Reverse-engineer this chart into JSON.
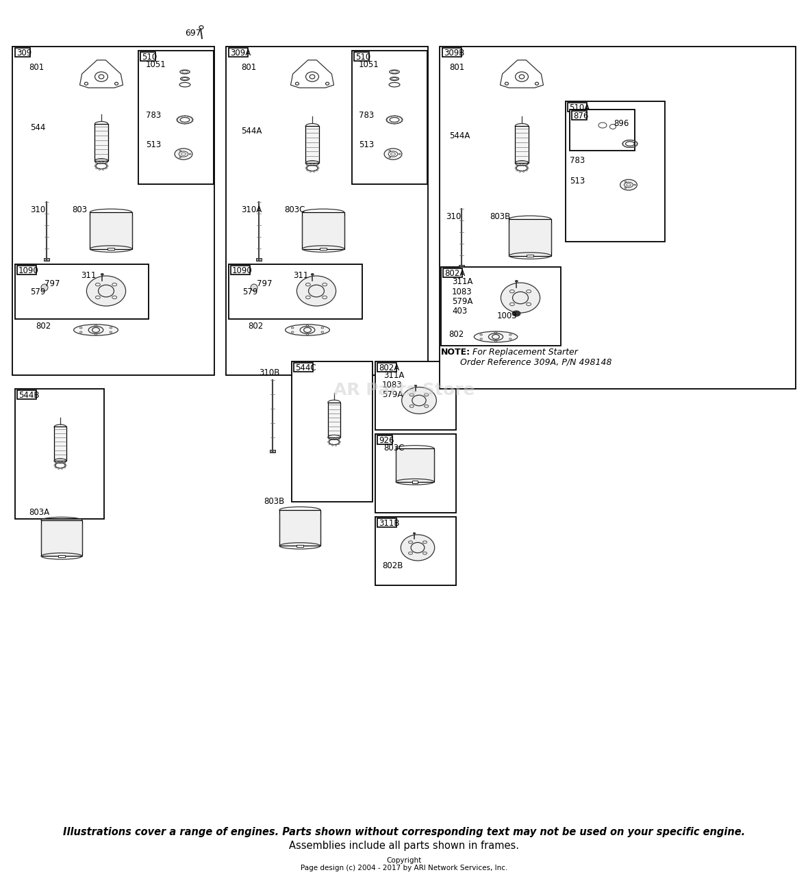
{
  "bg_color": "#ffffff",
  "footer_line1": "Illustrations cover a range of engines. Parts shown without corresponding text may not be used on your specific engine.",
  "footer_line2": "Assemblies include all parts shown in frames.",
  "footer_copyright": "Copyright",
  "footer_pagedesign": "Page design (c) 2004 - 2017 by ARI Network Services, Inc.",
  "watermark": "AR Parts Store",
  "top_label": "697",
  "note_bold": "NOTE:",
  "note_rest": " For Replacement Starter\n       Order Reference 309A, P/N 498148"
}
